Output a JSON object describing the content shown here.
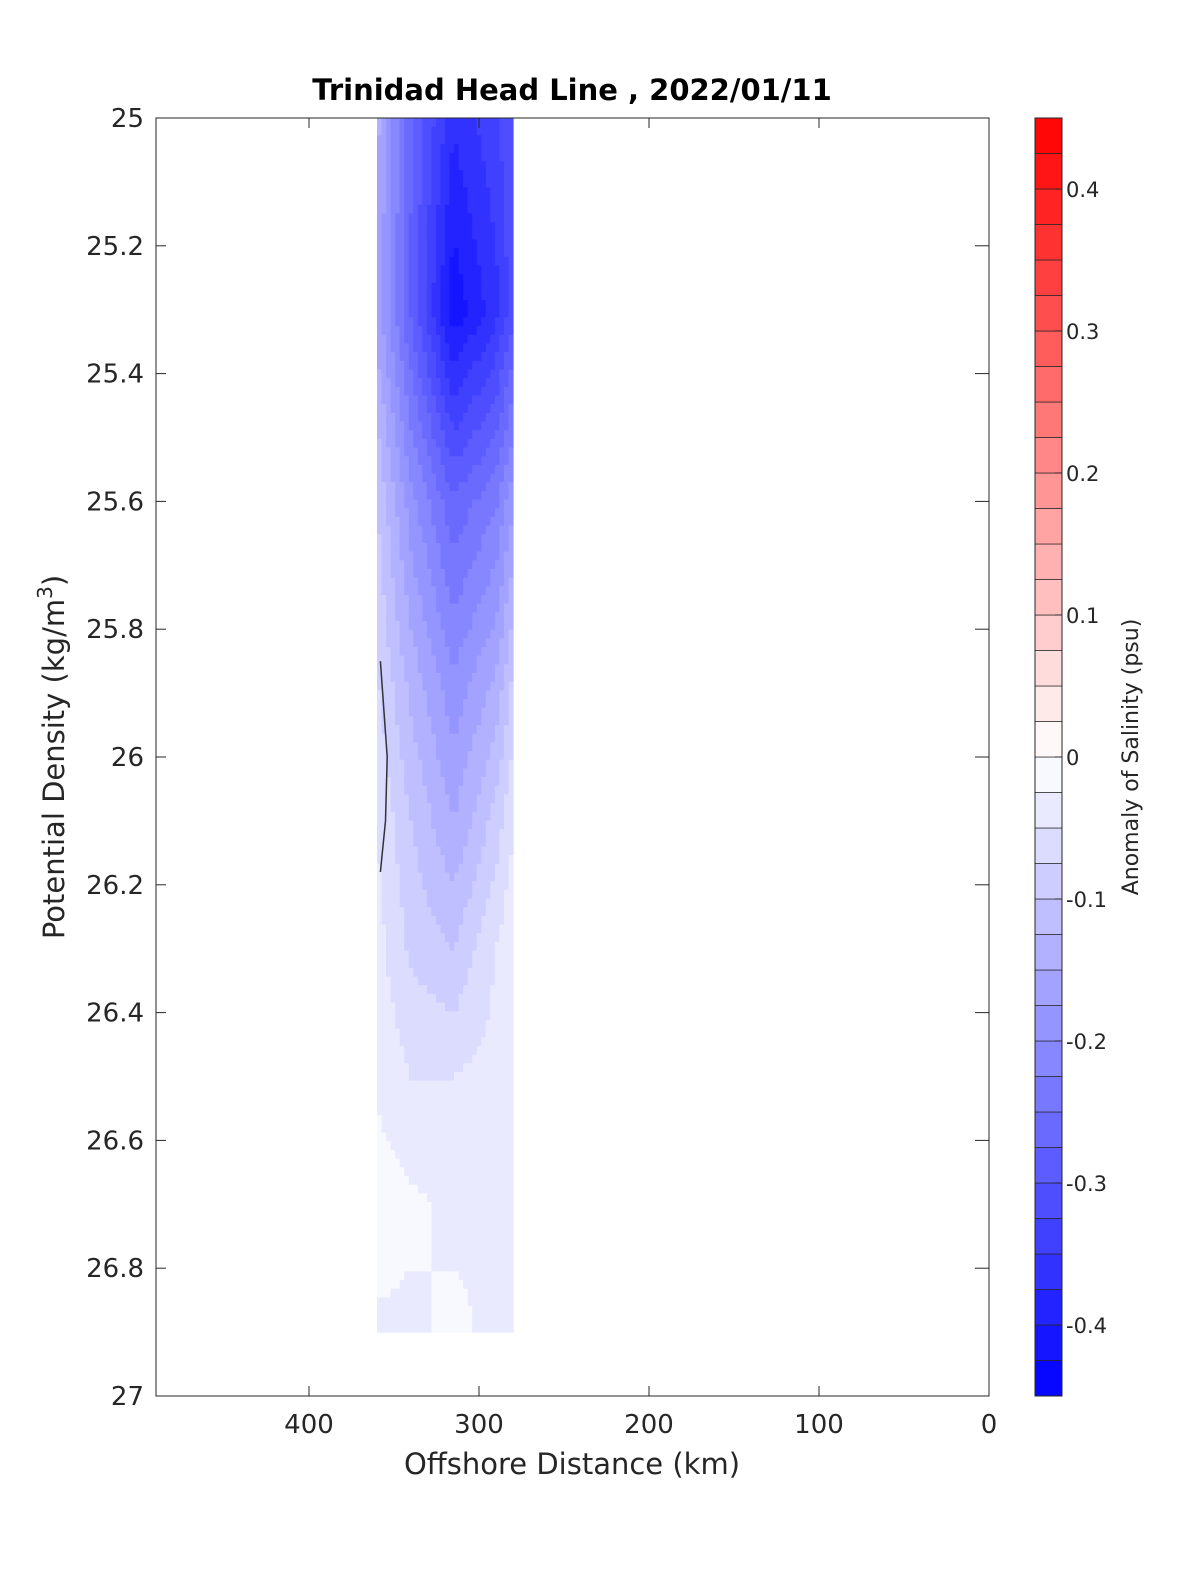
{
  "chart_data": {
    "type": "heatmap",
    "title": "Trinidad Head Line , 2022/01/11",
    "xlabel": "Offshore Distance (km)",
    "ylabel_main": "Potential Density (kg/m",
    "ylabel_sup": "3",
    "ylabel_close": ")",
    "xlim": [
      490,
      0
    ],
    "ylim": [
      25,
      27
    ],
    "x_ticks": [
      400,
      300,
      200,
      100,
      0
    ],
    "x_tick_labels": [
      "400",
      "300",
      "200",
      "100",
      "0"
    ],
    "y_ticks": [
      25,
      25.2,
      25.4,
      25.6,
      25.8,
      26,
      26.2,
      26.4,
      26.6,
      26.8,
      27
    ],
    "y_tick_labels": [
      "25",
      "25.2",
      "25.4",
      "25.6",
      "25.8",
      "26",
      "26.2",
      "26.4",
      "26.6",
      "26.8",
      "27"
    ],
    "colorbar": {
      "label": "Anomaly of Salinity (psu)",
      "range": [
        -0.45,
        0.45
      ],
      "levels": 36,
      "ticks": [
        0.4,
        0.3,
        0.2,
        0.1,
        0,
        -0.1,
        -0.2,
        -0.3,
        -0.4
      ],
      "tick_labels": [
        "0.4",
        "0.3",
        "0.2",
        "0.1",
        "0",
        "-0.1",
        "-0.2",
        "-0.3",
        "-0.4"
      ],
      "colors": {
        "negative": "#0000ff",
        "zero": "#ffffff",
        "positive": "#ff0000"
      }
    },
    "stations_km": [
      360,
      340,
      315,
      290,
      280
    ],
    "density_levels": [
      25.0,
      25.3,
      25.6,
      25.9,
      26.1,
      26.3,
      26.5,
      26.7,
      26.9
    ],
    "anomaly_grid": [
      [
        -0.14,
        -0.27,
        -0.37,
        -0.33,
        -0.3
      ],
      [
        -0.16,
        -0.28,
        -0.42,
        -0.36,
        -0.31
      ],
      [
        -0.1,
        -0.19,
        -0.27,
        -0.23,
        -0.18
      ],
      [
        -0.07,
        -0.13,
        -0.19,
        -0.14,
        -0.09
      ],
      [
        -0.05,
        -0.1,
        -0.15,
        -0.09,
        -0.05
      ],
      [
        -0.04,
        -0.08,
        -0.1,
        -0.05,
        -0.03
      ],
      [
        -0.03,
        -0.05,
        -0.05,
        -0.04,
        -0.03
      ],
      [
        -0.01,
        -0.02,
        -0.03,
        -0.03,
        -0.04
      ],
      [
        -0.03,
        -0.03,
        -0.02,
        -0.03,
        -0.03
      ]
    ],
    "zero_contour": {
      "x": [
        358,
        354,
        355,
        358
      ],
      "y": [
        25.85,
        26.0,
        26.1,
        26.18
      ]
    }
  }
}
